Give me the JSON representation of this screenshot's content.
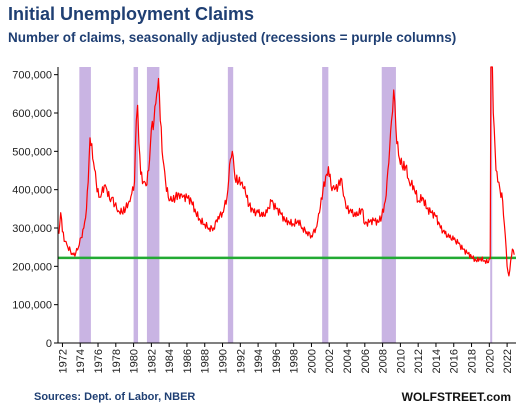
{
  "chart_data": {
    "type": "line",
    "title": "Initial Unemployment Claims",
    "subtitle": "Number of claims, seasonally adjusted (recessions = purple columns)",
    "xlabel": "",
    "ylabel": "",
    "xlim": [
      1971.5,
      2023.0
    ],
    "ylim": [
      0,
      720000
    ],
    "grid": "none",
    "legend": "none",
    "y_ticks": [
      "0",
      "100,000",
      "200,000",
      "300,000",
      "400,000",
      "500,000",
      "600,000",
      "700,000"
    ],
    "y_tick_values": [
      0,
      100000,
      200000,
      300000,
      400000,
      500000,
      600000,
      700000
    ],
    "x_ticks": [
      "1972",
      "1974",
      "1976",
      "1978",
      "1980",
      "1982",
      "1984",
      "1986",
      "1988",
      "1990",
      "1992",
      "1994",
      "1996",
      "1998",
      "2000",
      "2002",
      "2004",
      "2006",
      "2008",
      "2010",
      "2012",
      "2014",
      "2016",
      "2018",
      "2020",
      "2022"
    ],
    "recessions": [
      [
        1973.9,
        1975.2
      ],
      [
        1980.0,
        1980.5
      ],
      [
        1981.5,
        1982.9
      ],
      [
        1990.6,
        1991.2
      ],
      [
        2001.2,
        2001.9
      ],
      [
        2007.9,
        2009.5
      ],
      [
        2020.1,
        2020.3
      ]
    ],
    "reference_line": 222000,
    "series": [
      {
        "points": [
          [
            1971.6,
            285000
          ],
          [
            1971.8,
            340000
          ],
          [
            1972.0,
            290000
          ],
          [
            1972.3,
            265000
          ],
          [
            1972.6,
            250000
          ],
          [
            1972.9,
            240000
          ],
          [
            1973.2,
            230000
          ],
          [
            1973.5,
            235000
          ],
          [
            1973.8,
            250000
          ],
          [
            1974.1,
            275000
          ],
          [
            1974.4,
            300000
          ],
          [
            1974.7,
            350000
          ],
          [
            1974.9,
            420000
          ],
          [
            1975.1,
            535000
          ],
          [
            1975.3,
            520000
          ],
          [
            1975.5,
            470000
          ],
          [
            1975.8,
            420000
          ],
          [
            1976.1,
            380000
          ],
          [
            1976.4,
            390000
          ],
          [
            1976.7,
            410000
          ],
          [
            1977.0,
            400000
          ],
          [
            1977.3,
            375000
          ],
          [
            1977.6,
            380000
          ],
          [
            1977.9,
            360000
          ],
          [
            1978.3,
            345000
          ],
          [
            1978.7,
            340000
          ],
          [
            1979.1,
            350000
          ],
          [
            1979.5,
            370000
          ],
          [
            1979.8,
            390000
          ],
          [
            1980.1,
            420000
          ],
          [
            1980.3,
            580000
          ],
          [
            1980.45,
            620000
          ],
          [
            1980.6,
            520000
          ],
          [
            1980.8,
            440000
          ],
          [
            1981.1,
            420000
          ],
          [
            1981.4,
            410000
          ],
          [
            1981.7,
            450000
          ],
          [
            1982.0,
            560000
          ],
          [
            1982.3,
            580000
          ],
          [
            1982.6,
            650000
          ],
          [
            1982.8,
            690000
          ],
          [
            1983.0,
            580000
          ],
          [
            1983.3,
            480000
          ],
          [
            1983.6,
            420000
          ],
          [
            1983.9,
            380000
          ],
          [
            1984.3,
            370000
          ],
          [
            1984.7,
            380000
          ],
          [
            1985.1,
            390000
          ],
          [
            1985.5,
            380000
          ],
          [
            1986.0,
            380000
          ],
          [
            1986.5,
            370000
          ],
          [
            1987.0,
            340000
          ],
          [
            1987.5,
            320000
          ],
          [
            1988.0,
            310000
          ],
          [
            1988.5,
            300000
          ],
          [
            1989.0,
            300000
          ],
          [
            1989.5,
            330000
          ],
          [
            1990.0,
            340000
          ],
          [
            1990.5,
            380000
          ],
          [
            1990.9,
            480000
          ],
          [
            1991.1,
            500000
          ],
          [
            1991.4,
            430000
          ],
          [
            1991.8,
            420000
          ],
          [
            1992.2,
            420000
          ],
          [
            1992.6,
            390000
          ],
          [
            1993.0,
            360000
          ],
          [
            1993.5,
            340000
          ],
          [
            1994.0,
            340000
          ],
          [
            1994.5,
            330000
          ],
          [
            1995.0,
            340000
          ],
          [
            1995.5,
            370000
          ],
          [
            1996.0,
            350000
          ],
          [
            1996.5,
            340000
          ],
          [
            1997.0,
            320000
          ],
          [
            1997.5,
            315000
          ],
          [
            1998.0,
            310000
          ],
          [
            1998.5,
            320000
          ],
          [
            1999.0,
            300000
          ],
          [
            1999.5,
            290000
          ],
          [
            2000.0,
            280000
          ],
          [
            2000.5,
            300000
          ],
          [
            2000.9,
            340000
          ],
          [
            2001.3,
            400000
          ],
          [
            2001.7,
            440000
          ],
          [
            2001.9,
            460000
          ],
          [
            2002.2,
            410000
          ],
          [
            2002.6,
            400000
          ],
          [
            2003.0,
            410000
          ],
          [
            2003.3,
            430000
          ],
          [
            2003.7,
            380000
          ],
          [
            2004.0,
            350000
          ],
          [
            2004.5,
            340000
          ],
          [
            2005.0,
            330000
          ],
          [
            2005.7,
            350000
          ],
          [
            2006.0,
            310000
          ],
          [
            2006.5,
            315000
          ],
          [
            2007.0,
            320000
          ],
          [
            2007.5,
            315000
          ],
          [
            2007.9,
            330000
          ],
          [
            2008.3,
            370000
          ],
          [
            2008.7,
            470000
          ],
          [
            2009.0,
            580000
          ],
          [
            2009.25,
            660000
          ],
          [
            2009.5,
            560000
          ],
          [
            2009.8,
            490000
          ],
          [
            2010.2,
            460000
          ],
          [
            2010.6,
            460000
          ],
          [
            2011.0,
            420000
          ],
          [
            2011.5,
            410000
          ],
          [
            2012.0,
            370000
          ],
          [
            2012.5,
            380000
          ],
          [
            2013.0,
            350000
          ],
          [
            2013.5,
            340000
          ],
          [
            2014.0,
            330000
          ],
          [
            2014.5,
            300000
          ],
          [
            2015.0,
            285000
          ],
          [
            2015.5,
            275000
          ],
          [
            2016.0,
            270000
          ],
          [
            2016.5,
            260000
          ],
          [
            2017.0,
            245000
          ],
          [
            2017.5,
            235000
          ],
          [
            2018.0,
            225000
          ],
          [
            2018.5,
            215000
          ],
          [
            2019.0,
            220000
          ],
          [
            2019.5,
            215000
          ],
          [
            2019.9,
            210000
          ],
          [
            2020.1,
            220000
          ],
          [
            2020.18,
            720000
          ],
          [
            2020.25,
            720000
          ],
          [
            2020.35,
            720000
          ],
          [
            2020.45,
            600000
          ],
          [
            2020.55,
            560000
          ],
          [
            2020.75,
            450000
          ],
          [
            2020.95,
            420000
          ],
          [
            2021.2,
            400000
          ],
          [
            2021.5,
            370000
          ],
          [
            2021.8,
            280000
          ],
          [
            2022.0,
            200000
          ],
          [
            2022.2,
            175000
          ],
          [
            2022.4,
            215000
          ],
          [
            2022.6,
            245000
          ],
          [
            2022.8,
            230000
          ]
        ]
      }
    ]
  },
  "footer": {
    "source": "Sources: Dept. of Labor, NBER",
    "brand": "WOLFSTREET.com"
  },
  "colors": {
    "line": "#ff0000",
    "recession": "#c9b4e3",
    "reference": "#22aa33",
    "title": "#1f3f73"
  }
}
